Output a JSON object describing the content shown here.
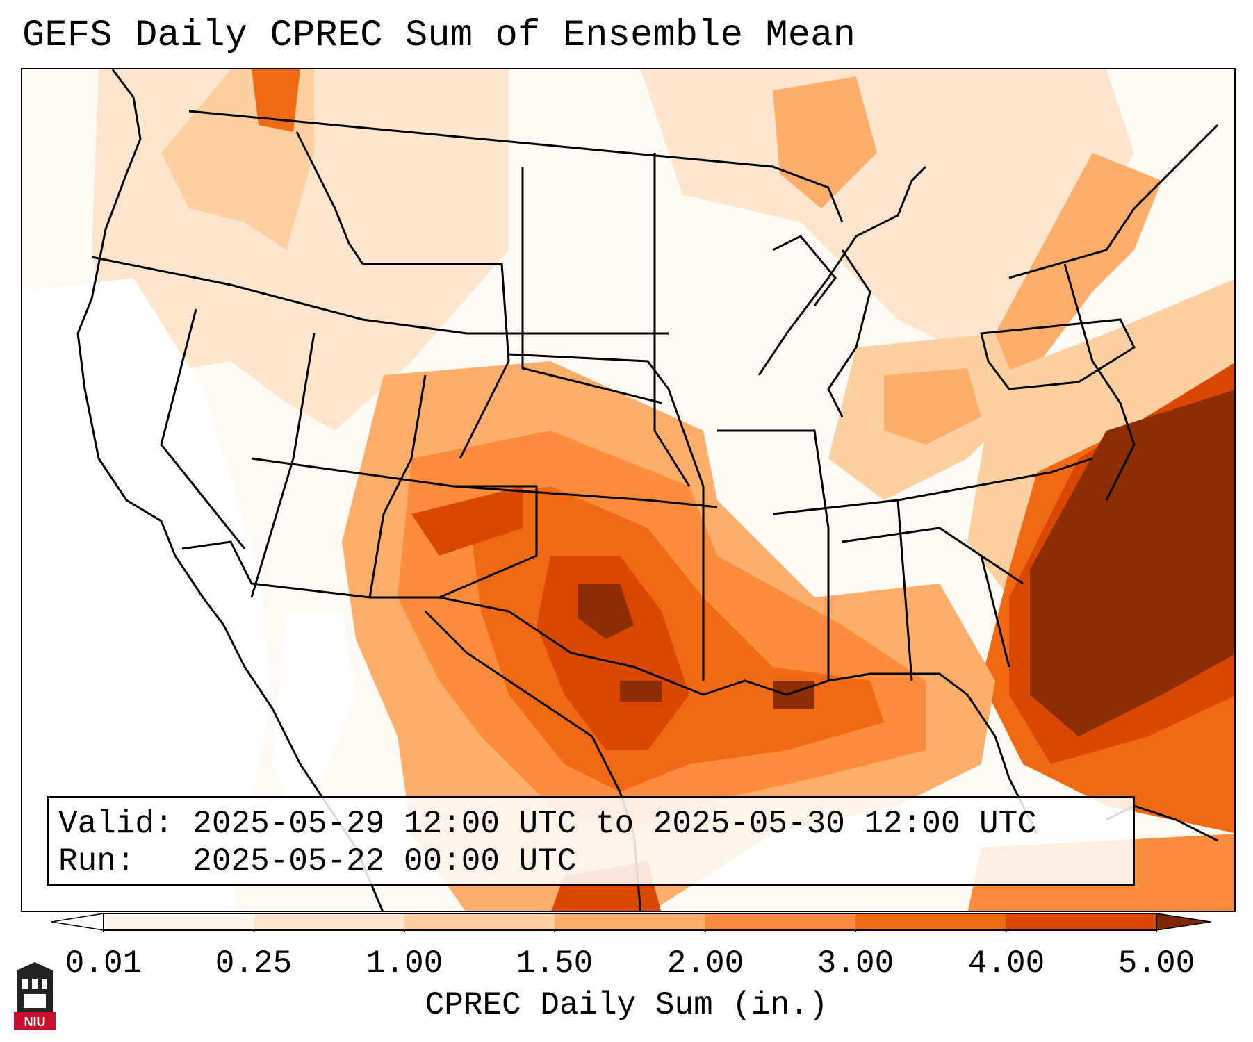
{
  "title": "GEFS Daily CPREC Sum of Ensemble Mean",
  "info": {
    "valid_label": "Valid:",
    "valid_value": "2025-05-29 12:00 UTC to 2025-05-30 12:00 UTC",
    "run_label": "Run:",
    "run_value": "2025-05-22 00:00 UTC"
  },
  "colorbar": {
    "title": "CPREC Daily Sum (in.)",
    "ticks": [
      "0.01",
      "0.25",
      "1.00",
      "1.50",
      "2.00",
      "3.00",
      "4.00",
      "5.00"
    ],
    "colors": [
      "#fff5eb",
      "#fee6ce",
      "#fdd0a2",
      "#fdae6b",
      "#fd8d3c",
      "#f16913",
      "#d94801",
      "#8c2d04"
    ],
    "under_color": "#ffffff",
    "over_color": "#7f2704"
  },
  "logo": {
    "label": "NIU",
    "color": "#c8102e"
  }
}
